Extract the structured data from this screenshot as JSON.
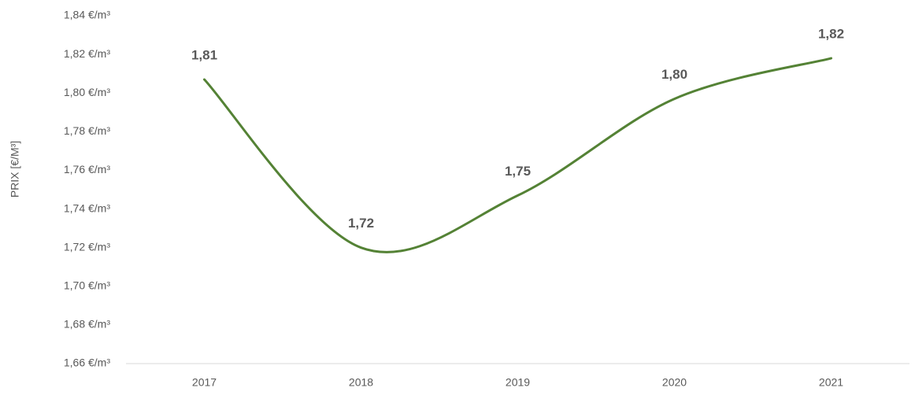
{
  "chart_data": {
    "type": "line",
    "y_label": "PRIX [€/M³]",
    "categories": [
      "2017",
      "2018",
      "2019",
      "2020",
      "2021"
    ],
    "series": [
      {
        "name": "Prix",
        "color": "#548235",
        "values": [
          1.807,
          1.72,
          1.747,
          1.797,
          1.818
        ],
        "value_labels": [
          "1,81",
          "1,72",
          "1,75",
          "1,80",
          "1,82"
        ]
      }
    ],
    "ylim": [
      1.66,
      1.84
    ],
    "yticks": [
      {
        "value": 1.66,
        "label": "1,66 €/m³"
      },
      {
        "value": 1.68,
        "label": "1,68 €/m³"
      },
      {
        "value": 1.7,
        "label": "1,70 €/m³"
      },
      {
        "value": 1.72,
        "label": "1,72 €/m³"
      },
      {
        "value": 1.74,
        "label": "1,74 €/m³"
      },
      {
        "value": 1.76,
        "label": "1,76 €/m³"
      },
      {
        "value": 1.78,
        "label": "1,78 €/m³"
      },
      {
        "value": 1.8,
        "label": "1,80 €/m³"
      },
      {
        "value": 1.82,
        "label": "1,82 €/m³"
      },
      {
        "value": 1.84,
        "label": "1,84 €/m³"
      }
    ],
    "smooth": true,
    "grid": false
  }
}
